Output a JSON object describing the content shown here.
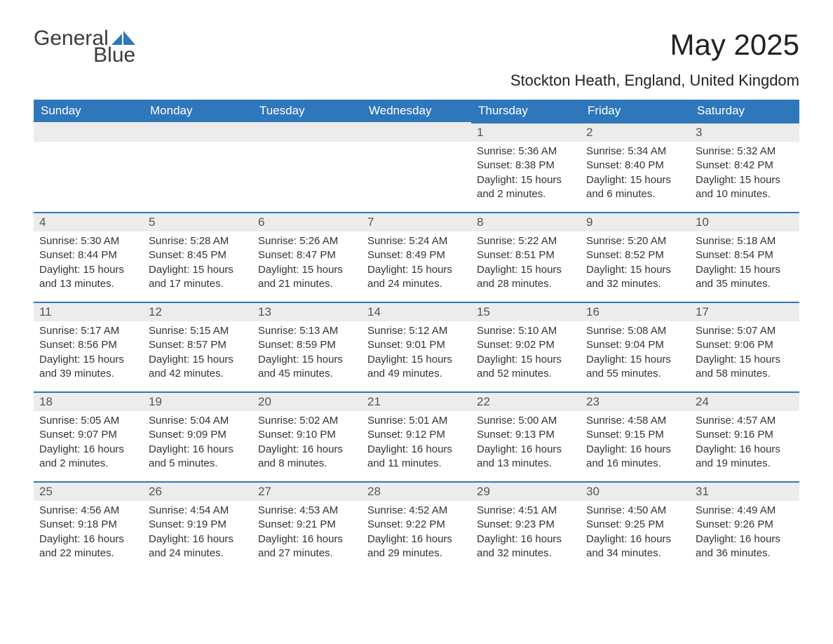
{
  "brand": {
    "text_general": "General",
    "text_blue": "Blue"
  },
  "title": "May 2025",
  "subtitle": "Stockton Heath, England, United Kingdom",
  "colors": {
    "header_bg": "#2f77bb",
    "header_text": "#ffffff",
    "daynum_bg": "#ececec",
    "daynum_border": "#2f77bb",
    "body_text": "#333333",
    "logo_blue": "#2f77bb"
  },
  "day_headers": [
    "Sunday",
    "Monday",
    "Tuesday",
    "Wednesday",
    "Thursday",
    "Friday",
    "Saturday"
  ],
  "weeks": [
    [
      {
        "blank": true
      },
      {
        "blank": true
      },
      {
        "blank": true
      },
      {
        "blank": true
      },
      {
        "n": "1",
        "sr": "Sunrise: 5:36 AM",
        "ss": "Sunset: 8:38 PM",
        "dl1": "Daylight: 15 hours",
        "dl2": "and 2 minutes."
      },
      {
        "n": "2",
        "sr": "Sunrise: 5:34 AM",
        "ss": "Sunset: 8:40 PM",
        "dl1": "Daylight: 15 hours",
        "dl2": "and 6 minutes."
      },
      {
        "n": "3",
        "sr": "Sunrise: 5:32 AM",
        "ss": "Sunset: 8:42 PM",
        "dl1": "Daylight: 15 hours",
        "dl2": "and 10 minutes."
      }
    ],
    [
      {
        "n": "4",
        "sr": "Sunrise: 5:30 AM",
        "ss": "Sunset: 8:44 PM",
        "dl1": "Daylight: 15 hours",
        "dl2": "and 13 minutes."
      },
      {
        "n": "5",
        "sr": "Sunrise: 5:28 AM",
        "ss": "Sunset: 8:45 PM",
        "dl1": "Daylight: 15 hours",
        "dl2": "and 17 minutes."
      },
      {
        "n": "6",
        "sr": "Sunrise: 5:26 AM",
        "ss": "Sunset: 8:47 PM",
        "dl1": "Daylight: 15 hours",
        "dl2": "and 21 minutes."
      },
      {
        "n": "7",
        "sr": "Sunrise: 5:24 AM",
        "ss": "Sunset: 8:49 PM",
        "dl1": "Daylight: 15 hours",
        "dl2": "and 24 minutes."
      },
      {
        "n": "8",
        "sr": "Sunrise: 5:22 AM",
        "ss": "Sunset: 8:51 PM",
        "dl1": "Daylight: 15 hours",
        "dl2": "and 28 minutes."
      },
      {
        "n": "9",
        "sr": "Sunrise: 5:20 AM",
        "ss": "Sunset: 8:52 PM",
        "dl1": "Daylight: 15 hours",
        "dl2": "and 32 minutes."
      },
      {
        "n": "10",
        "sr": "Sunrise: 5:18 AM",
        "ss": "Sunset: 8:54 PM",
        "dl1": "Daylight: 15 hours",
        "dl2": "and 35 minutes."
      }
    ],
    [
      {
        "n": "11",
        "sr": "Sunrise: 5:17 AM",
        "ss": "Sunset: 8:56 PM",
        "dl1": "Daylight: 15 hours",
        "dl2": "and 39 minutes."
      },
      {
        "n": "12",
        "sr": "Sunrise: 5:15 AM",
        "ss": "Sunset: 8:57 PM",
        "dl1": "Daylight: 15 hours",
        "dl2": "and 42 minutes."
      },
      {
        "n": "13",
        "sr": "Sunrise: 5:13 AM",
        "ss": "Sunset: 8:59 PM",
        "dl1": "Daylight: 15 hours",
        "dl2": "and 45 minutes."
      },
      {
        "n": "14",
        "sr": "Sunrise: 5:12 AM",
        "ss": "Sunset: 9:01 PM",
        "dl1": "Daylight: 15 hours",
        "dl2": "and 49 minutes."
      },
      {
        "n": "15",
        "sr": "Sunrise: 5:10 AM",
        "ss": "Sunset: 9:02 PM",
        "dl1": "Daylight: 15 hours",
        "dl2": "and 52 minutes."
      },
      {
        "n": "16",
        "sr": "Sunrise: 5:08 AM",
        "ss": "Sunset: 9:04 PM",
        "dl1": "Daylight: 15 hours",
        "dl2": "and 55 minutes."
      },
      {
        "n": "17",
        "sr": "Sunrise: 5:07 AM",
        "ss": "Sunset: 9:06 PM",
        "dl1": "Daylight: 15 hours",
        "dl2": "and 58 minutes."
      }
    ],
    [
      {
        "n": "18",
        "sr": "Sunrise: 5:05 AM",
        "ss": "Sunset: 9:07 PM",
        "dl1": "Daylight: 16 hours",
        "dl2": "and 2 minutes."
      },
      {
        "n": "19",
        "sr": "Sunrise: 5:04 AM",
        "ss": "Sunset: 9:09 PM",
        "dl1": "Daylight: 16 hours",
        "dl2": "and 5 minutes."
      },
      {
        "n": "20",
        "sr": "Sunrise: 5:02 AM",
        "ss": "Sunset: 9:10 PM",
        "dl1": "Daylight: 16 hours",
        "dl2": "and 8 minutes."
      },
      {
        "n": "21",
        "sr": "Sunrise: 5:01 AM",
        "ss": "Sunset: 9:12 PM",
        "dl1": "Daylight: 16 hours",
        "dl2": "and 11 minutes."
      },
      {
        "n": "22",
        "sr": "Sunrise: 5:00 AM",
        "ss": "Sunset: 9:13 PM",
        "dl1": "Daylight: 16 hours",
        "dl2": "and 13 minutes."
      },
      {
        "n": "23",
        "sr": "Sunrise: 4:58 AM",
        "ss": "Sunset: 9:15 PM",
        "dl1": "Daylight: 16 hours",
        "dl2": "and 16 minutes."
      },
      {
        "n": "24",
        "sr": "Sunrise: 4:57 AM",
        "ss": "Sunset: 9:16 PM",
        "dl1": "Daylight: 16 hours",
        "dl2": "and 19 minutes."
      }
    ],
    [
      {
        "n": "25",
        "sr": "Sunrise: 4:56 AM",
        "ss": "Sunset: 9:18 PM",
        "dl1": "Daylight: 16 hours",
        "dl2": "and 22 minutes."
      },
      {
        "n": "26",
        "sr": "Sunrise: 4:54 AM",
        "ss": "Sunset: 9:19 PM",
        "dl1": "Daylight: 16 hours",
        "dl2": "and 24 minutes."
      },
      {
        "n": "27",
        "sr": "Sunrise: 4:53 AM",
        "ss": "Sunset: 9:21 PM",
        "dl1": "Daylight: 16 hours",
        "dl2": "and 27 minutes."
      },
      {
        "n": "28",
        "sr": "Sunrise: 4:52 AM",
        "ss": "Sunset: 9:22 PM",
        "dl1": "Daylight: 16 hours",
        "dl2": "and 29 minutes."
      },
      {
        "n": "29",
        "sr": "Sunrise: 4:51 AM",
        "ss": "Sunset: 9:23 PM",
        "dl1": "Daylight: 16 hours",
        "dl2": "and 32 minutes."
      },
      {
        "n": "30",
        "sr": "Sunrise: 4:50 AM",
        "ss": "Sunset: 9:25 PM",
        "dl1": "Daylight: 16 hours",
        "dl2": "and 34 minutes."
      },
      {
        "n": "31",
        "sr": "Sunrise: 4:49 AM",
        "ss": "Sunset: 9:26 PM",
        "dl1": "Daylight: 16 hours",
        "dl2": "and 36 minutes."
      }
    ]
  ]
}
